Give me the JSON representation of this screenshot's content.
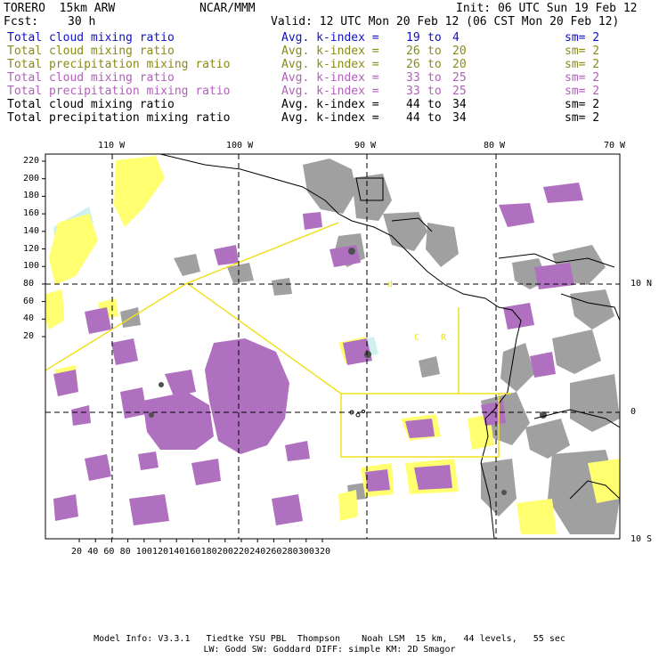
{
  "header": {
    "model": "TORERO  15km ARW",
    "org": "NCAR/MMM",
    "init": "Init: 06 UTC Sun 19 Feb 12",
    "fcst_label": "Fcst:",
    "fcst_value": "30 h",
    "valid": "Valid: 12 UTC Mon 20 Feb 12 (06 CST Mon 20 Feb 12)"
  },
  "legend": [
    {
      "field": "Total cloud mixing ratio",
      "avg": "Avg. k-index =",
      "from": "19",
      "to_word": "to",
      "to": "4",
      "sm": "sm= 2",
      "color": "#1010c0"
    },
    {
      "field": "Total cloud mixing ratio",
      "avg": "Avg. k-index =",
      "from": "26",
      "to_word": "to",
      "to": "20",
      "sm": "sm= 2",
      "color": "#8a8a18"
    },
    {
      "field": "Total precipitation mixing ratio",
      "avg": "Avg. k-index =",
      "from": "26",
      "to_word": "to",
      "to": "20",
      "sm": "sm= 2",
      "color": "#8a8a18"
    },
    {
      "field": "Total cloud mixing ratio",
      "avg": "Avg. k-index =",
      "from": "33",
      "to_word": "to",
      "to": "25",
      "sm": "sm= 2",
      "color": "#b060b8"
    },
    {
      "field": "Total precipitation mixing ratio",
      "avg": "Avg. k-index =",
      "from": "33",
      "to_word": "to",
      "to": "25",
      "sm": "sm= 2",
      "color": "#b060b8"
    },
    {
      "field": "Total cloud mixing ratio",
      "avg": "Avg. k-index =",
      "from": "44",
      "to_word": "to",
      "to": "34",
      "sm": "sm= 2",
      "color": "#000000"
    },
    {
      "field": "Total precipitation mixing ratio",
      "avg": "Avg. k-index =",
      "from": "44",
      "to_word": "to",
      "to": "34",
      "sm": "sm= 2",
      "color": "#000000"
    }
  ],
  "map": {
    "top_labels": [
      "110 W",
      "100 W",
      "90 W",
      "80 W",
      "70 W"
    ],
    "right_labels": [
      "10 N",
      "0",
      "10 S"
    ],
    "y_ticks": [
      "220",
      "200",
      "180",
      "160",
      "140",
      "120",
      "100",
      "80",
      "60",
      "40",
      "20"
    ],
    "x_ticks": [
      "20",
      "40",
      "60",
      "80",
      "100",
      "120",
      "140",
      "160",
      "180",
      "200",
      "220",
      "240",
      "260",
      "280",
      "300",
      "320"
    ],
    "colors": {
      "yellow": "#ffff70",
      "purple": "#b070c0",
      "gray": "#a0a0a0",
      "darkgray": "#606060",
      "cyan": "#d0f0f0",
      "domain_outline": "#f0e020"
    }
  },
  "footer": {
    "line1": "Model Info: V3.3.1   Tiedtke YSU PBL  Thompson    Noah LSM  15 km,   44 levels,   55 sec",
    "line2": "LW: Godd SW: Goddard DIFF: simple KM: 2D Smagor"
  }
}
